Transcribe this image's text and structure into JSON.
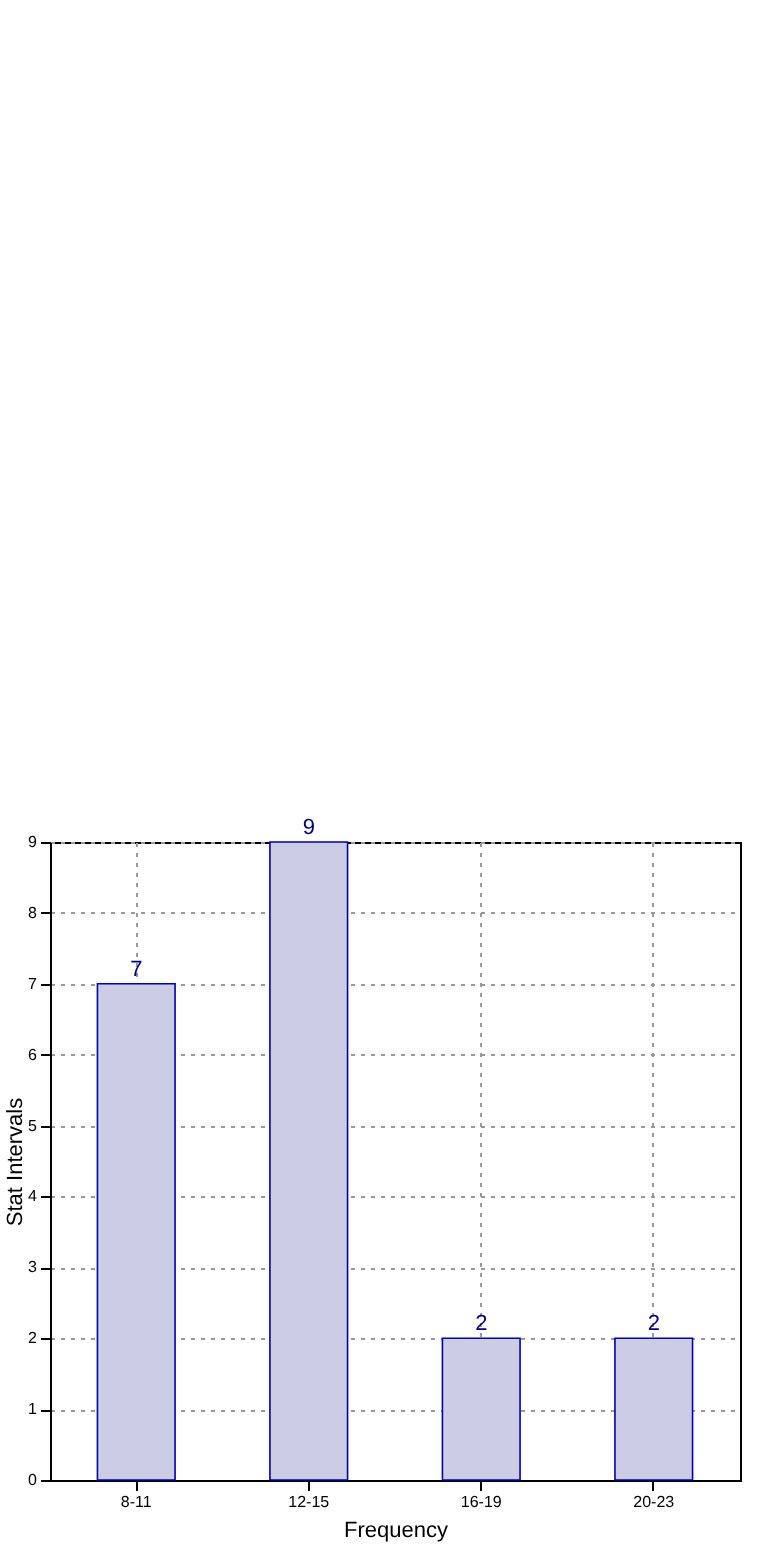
{
  "chart_data": {
    "type": "bar",
    "xlabel": "Frequency",
    "ylabel": "Stat Intervals",
    "categories": [
      "8-11",
      "12-15",
      "16-19",
      "20-23"
    ],
    "values": [
      7,
      9,
      2,
      2
    ],
    "color": "#cccce5",
    "ylim": [
      0,
      9
    ],
    "yticks": [
      0,
      1,
      2,
      3,
      4,
      5,
      6,
      7,
      8,
      9
    ],
    "grid": true,
    "data_labels": true
  }
}
